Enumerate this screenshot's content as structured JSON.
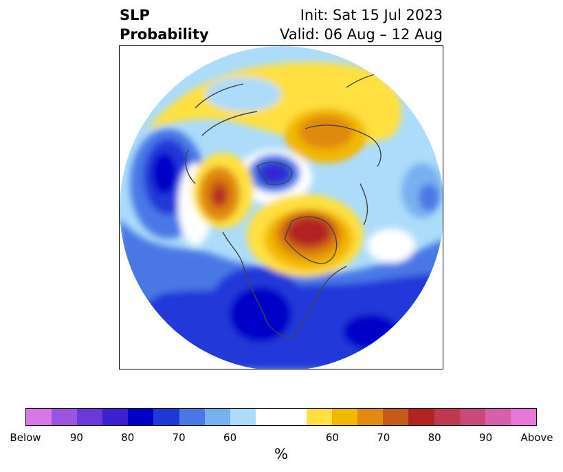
{
  "title": {
    "left_line1": "SLP",
    "left_line2": "Probability",
    "right_line1": "Init: Sat 15 Jul 2023",
    "right_line2": "Valid: 06 Aug – 12 Aug"
  },
  "map": {
    "projection": "north-polar-stereographic",
    "variable": "sea level pressure tercile probability",
    "features": [
      {
        "name": "below-core-hudson-bay",
        "category": "Below",
        "level": "80-90"
      },
      {
        "name": "below-core-western-us",
        "category": "Below",
        "level": "80-90"
      },
      {
        "name": "below-core-north-atlantic",
        "category": "Below",
        "level": "80"
      },
      {
        "name": "below-core-north-pacific",
        "category": "Below",
        "level": "80"
      },
      {
        "name": "above-core-greenland",
        "category": "Above",
        "level": "80"
      },
      {
        "name": "above-core-alaska",
        "category": "Above",
        "level": "80"
      },
      {
        "name": "above-region-siberia",
        "category": "Above",
        "level": "60-70"
      }
    ]
  },
  "colorbar": {
    "colors": [
      "#d678e6",
      "#9a55e0",
      "#6a3ad8",
      "#3a20d0",
      "#0000c8",
      "#2038d8",
      "#4a78e6",
      "#78b0f0",
      "#acdcfa",
      "#ffffff",
      "#ffffff",
      "#ffe040",
      "#f2b800",
      "#e08a10",
      "#c85a18",
      "#b22222",
      "#c03850",
      "#c84878",
      "#d860a8",
      "#e878d8"
    ],
    "tick_labels": [
      "Below",
      "90",
      "80",
      "70",
      "60",
      "60",
      "70",
      "80",
      "90",
      "Above"
    ],
    "label": "%"
  }
}
